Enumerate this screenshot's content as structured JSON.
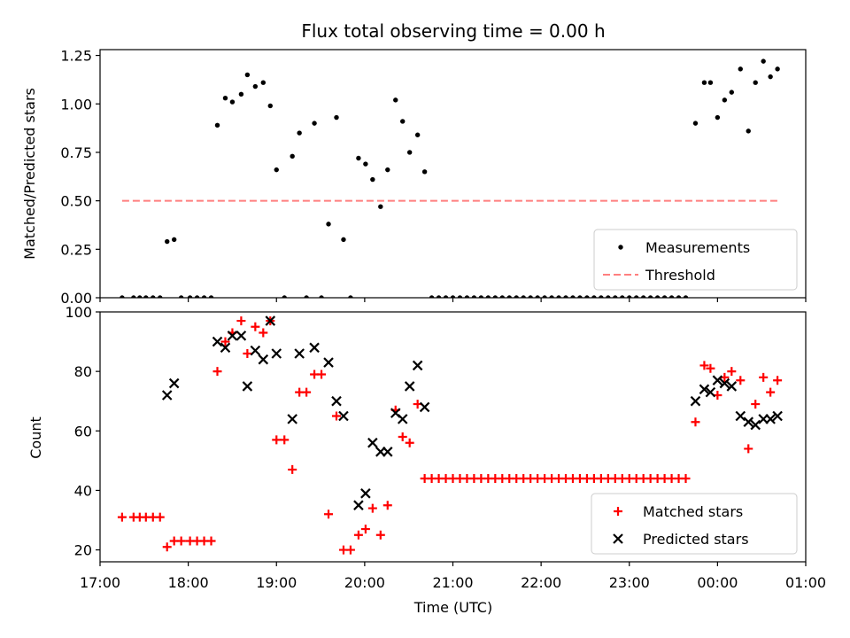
{
  "chart_data": [
    {
      "type": "scatter",
      "title": "Flux total observing time = 0.00 h",
      "xlabel": "",
      "ylabel": "Matched/Predicted stars",
      "xlim_hours": [
        17.0,
        25.0
      ],
      "ylim": [
        0,
        1.28
      ],
      "yticks": [
        0.0,
        0.25,
        0.5,
        0.75,
        1.0,
        1.25
      ],
      "ytick_labels": [
        "0.00",
        "0.25",
        "0.50",
        "0.75",
        "1.00",
        "1.25"
      ],
      "legend_position": "bottom-right",
      "series": [
        {
          "name": "Measurements",
          "marker": "dot",
          "color": "#000000",
          "points": [
            [
              17.25,
              0
            ],
            [
              17.38,
              0
            ],
            [
              17.45,
              0
            ],
            [
              17.52,
              0
            ],
            [
              17.6,
              0
            ],
            [
              17.68,
              0
            ],
            [
              17.76,
              0.29
            ],
            [
              17.84,
              0.3
            ],
            [
              17.92,
              0
            ],
            [
              18.02,
              0
            ],
            [
              18.1,
              0
            ],
            [
              18.18,
              0
            ],
            [
              18.26,
              0
            ],
            [
              18.33,
              0.89
            ],
            [
              18.42,
              1.03
            ],
            [
              18.5,
              1.01
            ],
            [
              18.6,
              1.05
            ],
            [
              18.67,
              1.15
            ],
            [
              18.76,
              1.09
            ],
            [
              18.85,
              1.11
            ],
            [
              18.93,
              0.99
            ],
            [
              19.0,
              0.66
            ],
            [
              19.09,
              0
            ],
            [
              19.18,
              0.73
            ],
            [
              19.26,
              0.85
            ],
            [
              19.34,
              0
            ],
            [
              19.43,
              0.9
            ],
            [
              19.51,
              0
            ],
            [
              19.59,
              0.38
            ],
            [
              19.68,
              0.93
            ],
            [
              19.76,
              0.3
            ],
            [
              19.84,
              0
            ],
            [
              19.93,
              0.72
            ],
            [
              20.01,
              0.69
            ],
            [
              20.09,
              0.61
            ],
            [
              20.18,
              0.47
            ],
            [
              20.26,
              0.66
            ],
            [
              20.35,
              1.02
            ],
            [
              20.43,
              0.91
            ],
            [
              20.51,
              0.75
            ],
            [
              20.6,
              0.84
            ],
            [
              20.68,
              0.65
            ],
            [
              20.76,
              0
            ],
            [
              20.84,
              0
            ],
            [
              20.92,
              0
            ],
            [
              21.0,
              0
            ],
            [
              21.08,
              0
            ],
            [
              21.16,
              0
            ],
            [
              21.24,
              0
            ],
            [
              21.32,
              0
            ],
            [
              21.4,
              0
            ],
            [
              21.48,
              0
            ],
            [
              21.56,
              0
            ],
            [
              21.64,
              0
            ],
            [
              21.72,
              0
            ],
            [
              21.8,
              0
            ],
            [
              21.88,
              0
            ],
            [
              21.96,
              0
            ],
            [
              22.04,
              0
            ],
            [
              22.12,
              0
            ],
            [
              22.2,
              0
            ],
            [
              22.28,
              0
            ],
            [
              22.36,
              0
            ],
            [
              22.44,
              0
            ],
            [
              22.52,
              0
            ],
            [
              22.6,
              0
            ],
            [
              22.68,
              0
            ],
            [
              22.76,
              0
            ],
            [
              22.84,
              0
            ],
            [
              22.92,
              0
            ],
            [
              23.0,
              0
            ],
            [
              23.08,
              0
            ],
            [
              23.16,
              0
            ],
            [
              23.24,
              0
            ],
            [
              23.32,
              0
            ],
            [
              23.4,
              0
            ],
            [
              23.48,
              0
            ],
            [
              23.56,
              0
            ],
            [
              23.64,
              0
            ],
            [
              23.75,
              0.9
            ],
            [
              23.85,
              1.11
            ],
            [
              23.92,
              1.11
            ],
            [
              24.0,
              0.93
            ],
            [
              24.08,
              1.02
            ],
            [
              24.16,
              1.06
            ],
            [
              24.26,
              1.18
            ],
            [
              24.35,
              0.86
            ],
            [
              24.43,
              1.11
            ],
            [
              24.52,
              1.22
            ],
            [
              24.6,
              1.14
            ],
            [
              24.68,
              1.18
            ]
          ]
        },
        {
          "name": "Threshold",
          "marker": "dashed-line",
          "color": "#ff7f7f",
          "points": [
            [
              17.25,
              0.5
            ],
            [
              24.68,
              0.5
            ]
          ]
        }
      ]
    },
    {
      "type": "scatter",
      "title": "",
      "xlabel": "Time (UTC)",
      "ylabel": "Count",
      "xlim_hours": [
        17.0,
        25.0
      ],
      "ylim": [
        16,
        100
      ],
      "yticks": [
        20,
        40,
        60,
        80,
        100
      ],
      "ytick_labels": [
        "20",
        "40",
        "60",
        "80",
        "100"
      ],
      "xticks_hours": [
        17,
        18,
        19,
        20,
        21,
        22,
        23,
        24,
        25
      ],
      "xtick_labels": [
        "17:00",
        "18:00",
        "19:00",
        "20:00",
        "21:00",
        "22:00",
        "23:00",
        "00:00",
        "01:00"
      ],
      "legend_position": "bottom-right",
      "series": [
        {
          "name": "Matched stars",
          "marker": "plus",
          "color": "#ff0000",
          "points": [
            [
              17.25,
              31
            ],
            [
              17.38,
              31
            ],
            [
              17.45,
              31
            ],
            [
              17.52,
              31
            ],
            [
              17.6,
              31
            ],
            [
              17.68,
              31
            ],
            [
              17.76,
              21
            ],
            [
              17.84,
              23
            ],
            [
              17.92,
              23
            ],
            [
              18.02,
              23
            ],
            [
              18.1,
              23
            ],
            [
              18.18,
              23
            ],
            [
              18.26,
              23
            ],
            [
              18.33,
              80
            ],
            [
              18.42,
              90
            ],
            [
              18.5,
              93
            ],
            [
              18.6,
              97
            ],
            [
              18.67,
              86
            ],
            [
              18.76,
              95
            ],
            [
              18.85,
              93
            ],
            [
              18.93,
              97
            ],
            [
              19.0,
              57
            ],
            [
              19.09,
              57
            ],
            [
              19.18,
              47
            ],
            [
              19.26,
              73
            ],
            [
              19.34,
              73
            ],
            [
              19.43,
              79
            ],
            [
              19.51,
              79
            ],
            [
              19.59,
              32
            ],
            [
              19.68,
              65
            ],
            [
              19.76,
              20
            ],
            [
              19.84,
              20
            ],
            [
              19.93,
              25
            ],
            [
              20.01,
              27
            ],
            [
              20.09,
              34
            ],
            [
              20.18,
              25
            ],
            [
              20.26,
              35
            ],
            [
              20.35,
              67
            ],
            [
              20.43,
              58
            ],
            [
              20.51,
              56
            ],
            [
              20.6,
              69
            ],
            [
              20.68,
              44
            ],
            [
              20.76,
              44
            ],
            [
              20.84,
              44
            ],
            [
              20.92,
              44
            ],
            [
              21.0,
              44
            ],
            [
              21.08,
              44
            ],
            [
              21.16,
              44
            ],
            [
              21.24,
              44
            ],
            [
              21.32,
              44
            ],
            [
              21.4,
              44
            ],
            [
              21.48,
              44
            ],
            [
              21.56,
              44
            ],
            [
              21.64,
              44
            ],
            [
              21.72,
              44
            ],
            [
              21.8,
              44
            ],
            [
              21.88,
              44
            ],
            [
              21.96,
              44
            ],
            [
              22.04,
              44
            ],
            [
              22.12,
              44
            ],
            [
              22.2,
              44
            ],
            [
              22.28,
              44
            ],
            [
              22.36,
              44
            ],
            [
              22.44,
              44
            ],
            [
              22.52,
              44
            ],
            [
              22.6,
              44
            ],
            [
              22.68,
              44
            ],
            [
              22.76,
              44
            ],
            [
              22.84,
              44
            ],
            [
              22.92,
              44
            ],
            [
              23.0,
              44
            ],
            [
              23.08,
              44
            ],
            [
              23.16,
              44
            ],
            [
              23.24,
              44
            ],
            [
              23.32,
              44
            ],
            [
              23.4,
              44
            ],
            [
              23.48,
              44
            ],
            [
              23.56,
              44
            ],
            [
              23.64,
              44
            ],
            [
              23.75,
              63
            ],
            [
              23.85,
              82
            ],
            [
              23.92,
              81
            ],
            [
              24.0,
              72
            ],
            [
              24.08,
              78
            ],
            [
              24.16,
              80
            ],
            [
              24.26,
              77
            ],
            [
              24.35,
              54
            ],
            [
              24.43,
              69
            ],
            [
              24.52,
              78
            ],
            [
              24.6,
              73
            ],
            [
              24.68,
              77
            ]
          ]
        },
        {
          "name": "Predicted stars",
          "marker": "x",
          "color": "#000000",
          "points": [
            [
              17.76,
              72
            ],
            [
              17.84,
              76
            ],
            [
              18.33,
              90
            ],
            [
              18.42,
              88
            ],
            [
              18.5,
              92
            ],
            [
              18.6,
              92
            ],
            [
              18.67,
              75
            ],
            [
              18.76,
              87
            ],
            [
              18.85,
              84
            ],
            [
              18.93,
              97
            ],
            [
              19.0,
              86
            ],
            [
              19.18,
              64
            ],
            [
              19.26,
              86
            ],
            [
              19.43,
              88
            ],
            [
              19.59,
              83
            ],
            [
              19.68,
              70
            ],
            [
              19.76,
              65
            ],
            [
              19.93,
              35
            ],
            [
              20.01,
              39
            ],
            [
              20.09,
              56
            ],
            [
              20.18,
              53
            ],
            [
              20.26,
              53
            ],
            [
              20.35,
              66
            ],
            [
              20.43,
              64
            ],
            [
              20.51,
              75
            ],
            [
              20.6,
              82
            ],
            [
              20.68,
              68
            ],
            [
              23.75,
              70
            ],
            [
              23.85,
              74
            ],
            [
              23.92,
              73
            ],
            [
              24.0,
              77
            ],
            [
              24.08,
              76
            ],
            [
              24.16,
              75
            ],
            [
              24.26,
              65
            ],
            [
              24.35,
              63
            ],
            [
              24.43,
              62
            ],
            [
              24.52,
              64
            ],
            [
              24.6,
              64
            ],
            [
              24.68,
              65
            ]
          ]
        }
      ]
    }
  ]
}
